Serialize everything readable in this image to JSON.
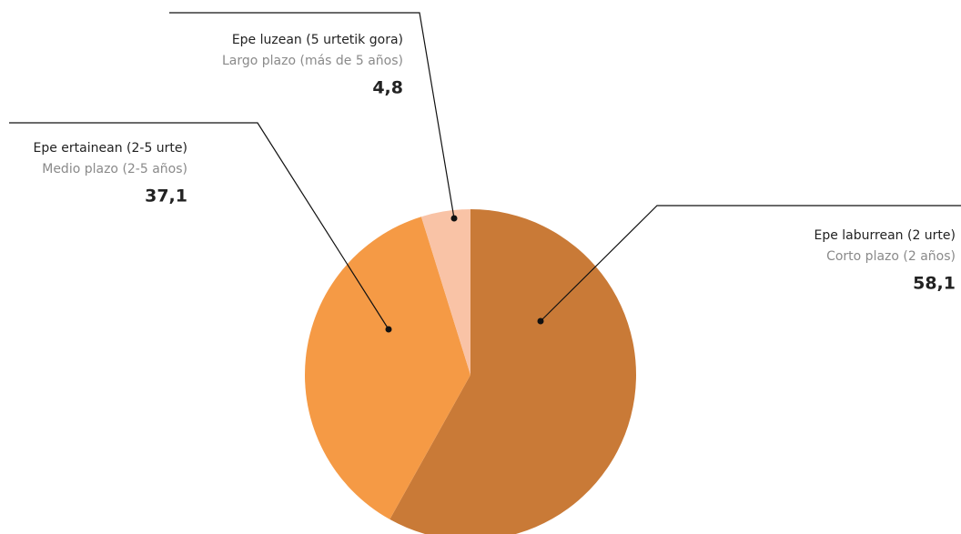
{
  "chart_data": {
    "type": "pie",
    "categories": [
      "Epe laburrean (2 urte)",
      "Epe ertainean (2-5 urte)",
      "Epe luzean (5 urtetik gora)"
    ],
    "subcategories": [
      "Corto plazo (2 años)",
      "Medio plazo (2-5 años)",
      "Largo plazo (más de 5 años)"
    ],
    "values": [
      58.1,
      37.1,
      4.8
    ],
    "value_labels": [
      "58,1",
      "37,1",
      "4,8"
    ],
    "colors": [
      "#c97a37",
      "#f59a45",
      "#f9c3a6"
    ]
  }
}
